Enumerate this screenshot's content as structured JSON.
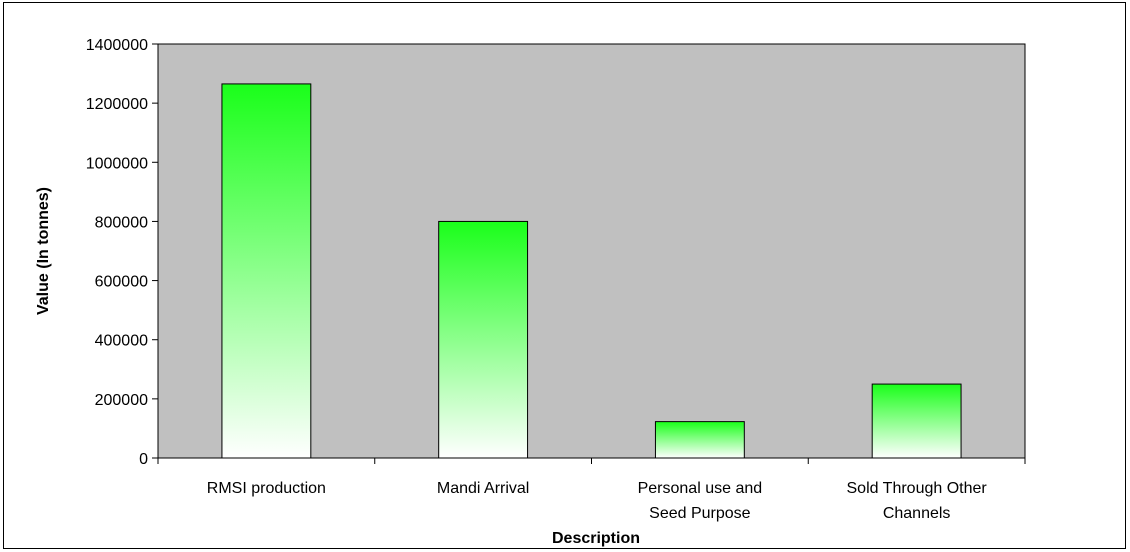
{
  "chart_data": {
    "type": "bar",
    "categories": [
      [
        "RMSI production"
      ],
      [
        "Mandi Arrival"
      ],
      [
        "Personal use and",
        "Seed Purpose"
      ],
      [
        "Sold Through Other",
        "Channels"
      ]
    ],
    "values": [
      1265000,
      800000,
      123000,
      250000
    ],
    "xlabel": "Description",
    "ylabel": "Value (In tonnes)",
    "ylim": [
      0,
      1400000
    ],
    "yticks": [
      0,
      200000,
      400000,
      600000,
      800000,
      1000000,
      1200000,
      1400000
    ],
    "grid": false,
    "legend": "none",
    "colors": {
      "plot_background": "#c0c0c0",
      "bar_top": "#1aff1a",
      "bar_bottom": "#ffffff",
      "bar_border": "#000000"
    }
  }
}
